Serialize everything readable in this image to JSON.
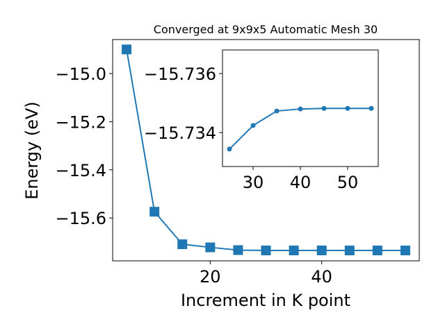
{
  "chart_data": [
    {
      "type": "line",
      "title": "Converged at 9x9x5 Automatic Mesh 30",
      "xlabel": "Increment in K point",
      "ylabel": "Energy (eV)",
      "x": [
        5,
        10,
        15,
        20,
        25,
        30,
        35,
        40,
        45,
        50,
        55
      ],
      "values": [
        -14.9,
        -15.574,
        -15.709,
        -15.722,
        -15.7334,
        -15.7348,
        -15.7348,
        -15.7348,
        -15.7348,
        -15.7348,
        -15.7348
      ],
      "color": "#1f77b4",
      "marker": "square",
      "xlim": [
        2.5,
        57.5
      ],
      "ylim": [
        -15.778,
        -14.859
      ],
      "xticks": [
        20,
        40
      ],
      "yticks": [
        {
          "value": -15.0,
          "label": "−15.0"
        },
        {
          "value": -15.2,
          "label": "−15.2"
        },
        {
          "value": -15.4,
          "label": "−15.4"
        },
        {
          "value": -15.6,
          "label": "−15.6"
        }
      ]
    },
    {
      "type": "line",
      "x": [
        25,
        30,
        35,
        40,
        45,
        50,
        55
      ],
      "values": [
        -15.73344,
        -15.73424,
        -15.73473,
        -15.7348,
        -15.73482,
        -15.73482,
        -15.73482
      ],
      "color": "#1f77b4",
      "marker": "circle",
      "xlim": [
        23.53,
        56.47
      ],
      "ylim": [
        -15.73285,
        -15.7368
      ],
      "xticks": [
        30,
        40,
        50
      ],
      "yticks": [
        {
          "value": -15.736,
          "label": "−15.736"
        },
        {
          "value": -15.734,
          "label": "−15.734"
        }
      ]
    }
  ]
}
